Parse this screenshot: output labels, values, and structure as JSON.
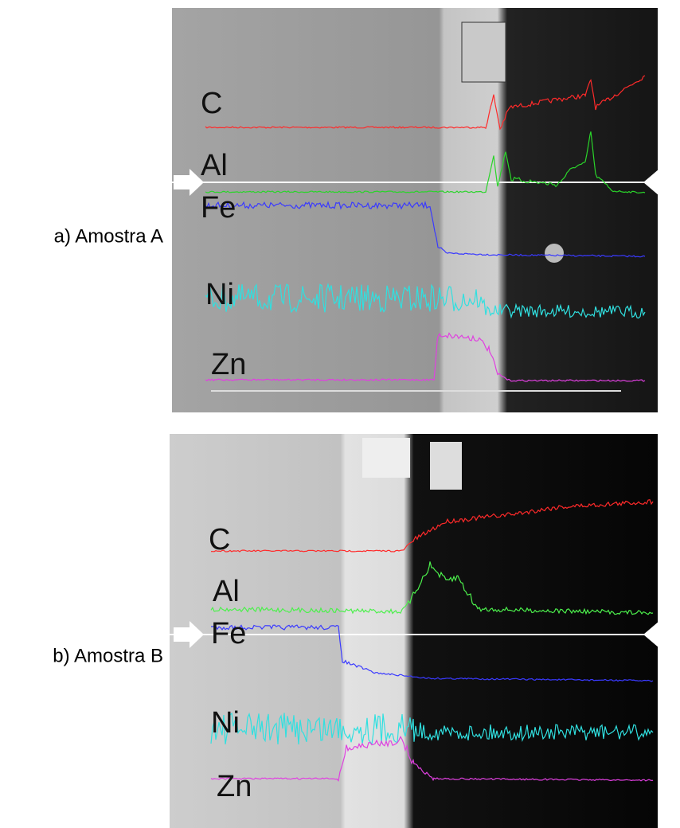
{
  "panels": [
    {
      "label": "a) Amostra A",
      "elements": [
        "C",
        "Al",
        "Fe",
        "Ni",
        "Zn"
      ]
    },
    {
      "label": "b) Amostra B",
      "elements": [
        "C",
        "Al",
        "Fe",
        "Ni",
        "Zn"
      ]
    }
  ]
}
